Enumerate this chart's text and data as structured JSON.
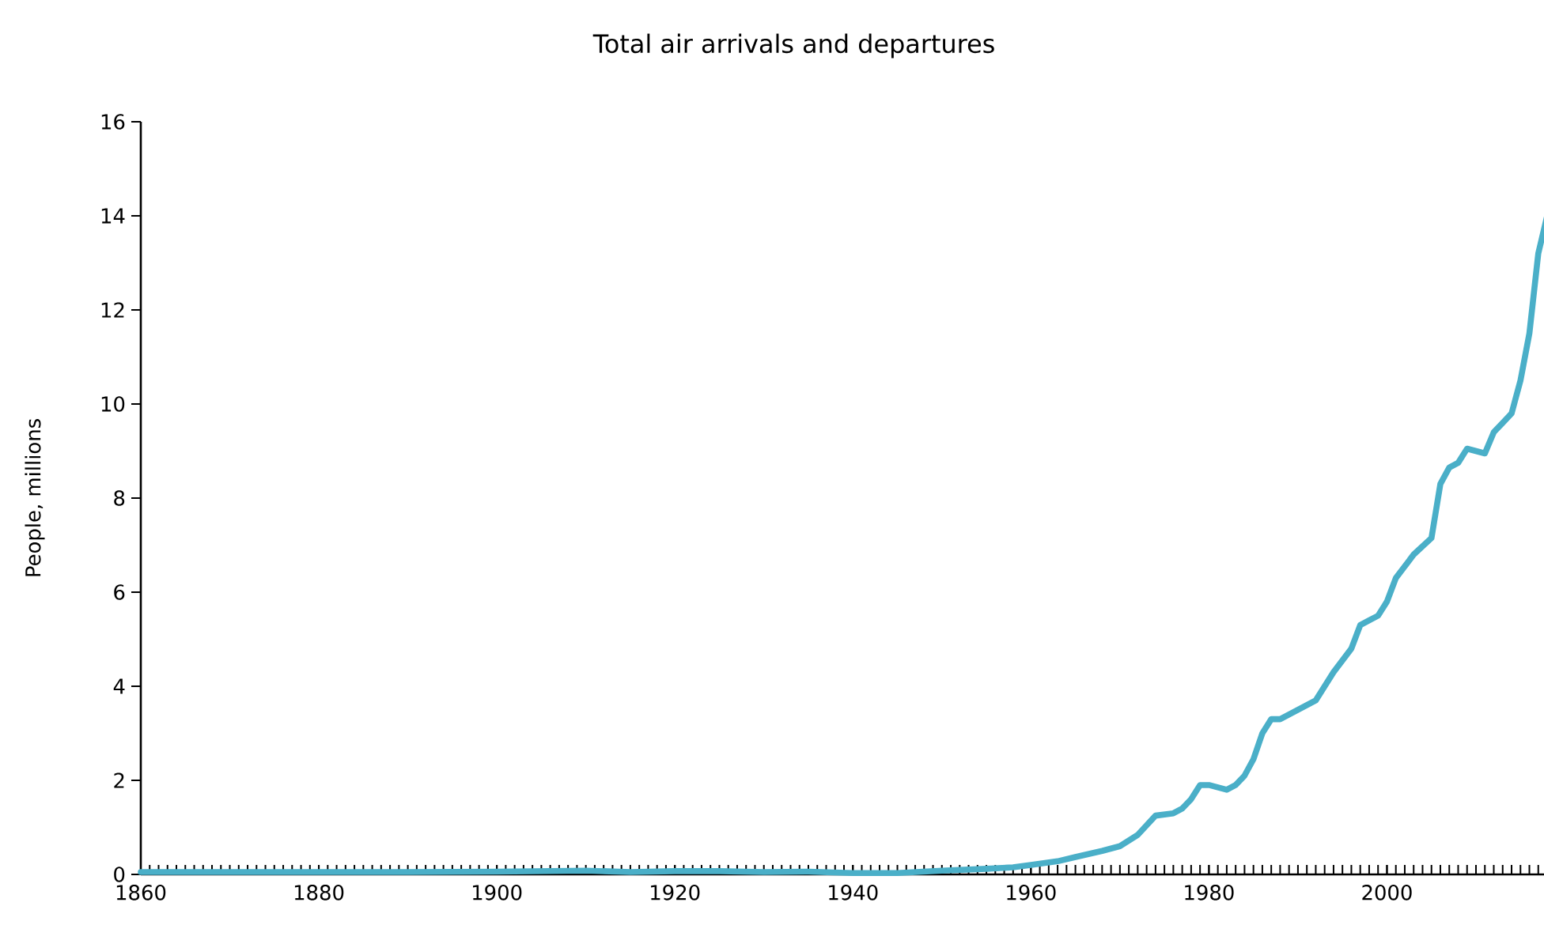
{
  "chart_data": {
    "type": "line",
    "title": "Total air arrivals and departures",
    "ylabel": "People, millions",
    "x": [
      1860,
      1870,
      1880,
      1890,
      1900,
      1905,
      1910,
      1915,
      1920,
      1925,
      1930,
      1935,
      1940,
      1945,
      1950,
      1955,
      1958,
      1960,
      1963,
      1965,
      1968,
      1970,
      1972,
      1974,
      1976,
      1977,
      1978,
      1979,
      1980,
      1981,
      1982,
      1983,
      1984,
      1985,
      1986,
      1987,
      1988,
      1990,
      1992,
      1994,
      1996,
      1997,
      1998,
      1999,
      2000,
      2001,
      2003,
      2005,
      2006,
      2007,
      2008,
      2009,
      2010,
      2011,
      2012,
      2013,
      2014,
      2015,
      2016,
      2017,
      2018
    ],
    "series": [
      {
        "color": "#4aafc8",
        "values": [
          0.05,
          0.05,
          0.05,
          0.05,
          0.06,
          0.07,
          0.08,
          0.05,
          0.07,
          0.07,
          0.05,
          0.06,
          0.03,
          0.03,
          0.08,
          0.12,
          0.15,
          0.2,
          0.28,
          0.37,
          0.5,
          0.6,
          0.84,
          1.25,
          1.3,
          1.4,
          1.6,
          1.9,
          1.9,
          1.85,
          1.8,
          1.9,
          2.1,
          2.45,
          3.0,
          3.3,
          3.3,
          3.5,
          3.7,
          4.3,
          4.8,
          5.3,
          5.4,
          5.5,
          5.8,
          6.3,
          6.8,
          7.15,
          8.3,
          8.65,
          8.75,
          9.05,
          9.0,
          8.95,
          9.4,
          9.6,
          9.8,
          10.5,
          11.5,
          13.2,
          14.0
        ]
      }
    ],
    "xlim": [
      1860,
      2018
    ],
    "xticks": [
      1860,
      1880,
      1900,
      1920,
      1940,
      1960,
      1980,
      2000
    ],
    "ylim": [
      0,
      16
    ],
    "yticks": [
      0,
      2,
      4,
      6,
      8,
      10,
      12,
      14,
      16
    ]
  }
}
